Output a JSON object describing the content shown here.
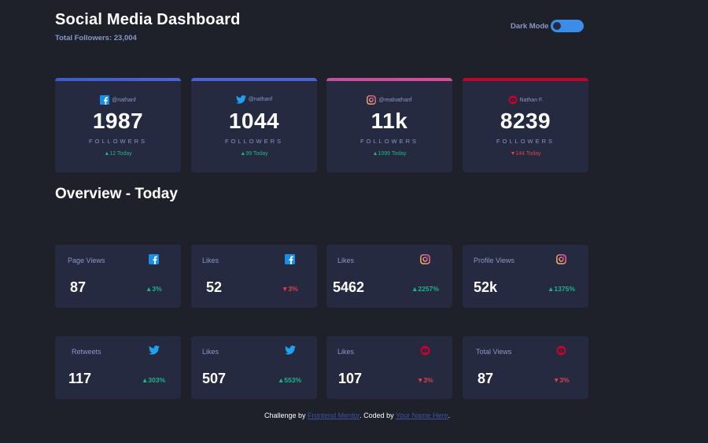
{
  "header": {
    "title": "Social Media Dashboard",
    "subtitle": "Total Followers: 23,004",
    "dark_mode_label": "Dark Mode"
  },
  "colors": {
    "facebook": "#178fe6",
    "twitter": "#1da1f2",
    "instagram_start": "#fdc468",
    "instagram_end": "#df4996",
    "youtube": "#c4032a",
    "up": "#1db489",
    "down": "#dc414c"
  },
  "followers": [
    {
      "platform": "facebook",
      "icon": "facebook-icon",
      "handle": "@nathanf",
      "count": "1987",
      "label": "FOLLOWERS",
      "today": "12 Today",
      "trend": "up"
    },
    {
      "platform": "twitter",
      "icon": "twitter-icon",
      "handle": "@nathanf",
      "count": "1044",
      "label": "FOLLOWERS",
      "today": "99 Today",
      "trend": "up"
    },
    {
      "platform": "instagram",
      "icon": "instagram-icon",
      "handle": "@realnathanf",
      "count": "11k",
      "label": "FOLLOWERS",
      "today": "1099 Today",
      "trend": "up"
    },
    {
      "platform": "youtube",
      "icon": "youtube-icon",
      "handle": "Nathan F.",
      "count": "8239",
      "label": "FOLLOWERS",
      "today": "144 Today",
      "trend": "down"
    }
  ],
  "overview_title": "Overview - Today",
  "overview": [
    {
      "label": "Page Views",
      "icon": "facebook-icon",
      "value": "87",
      "pct": "3%",
      "trend": "up"
    },
    {
      "label": "Likes",
      "icon": "facebook-icon",
      "value": "52",
      "pct": "3%",
      "trend": "down"
    },
    {
      "label": "Likes",
      "icon": "instagram-icon",
      "value": "5462",
      "pct": "2257%",
      "trend": "up"
    },
    {
      "label": "Profile Views",
      "icon": "instagram-icon",
      "value": "52k",
      "pct": "1375%",
      "trend": "up"
    },
    {
      "label": "Retweets",
      "icon": "twitter-icon",
      "value": "117",
      "pct": "303%",
      "trend": "up"
    },
    {
      "label": "Likes",
      "icon": "twitter-icon",
      "value": "507",
      "pct": "553%",
      "trend": "up"
    },
    {
      "label": "Likes",
      "icon": "youtube-icon",
      "value": "107",
      "pct": "3%",
      "trend": "down"
    },
    {
      "label": "Total Views",
      "icon": "youtube-icon",
      "value": "87",
      "pct": "3%",
      "trend": "down"
    }
  ],
  "footer": {
    "prefix": "Challenge by ",
    "link1": "Frontend Mentor",
    "middle": ". Coded by ",
    "link2": "Your Name Here",
    "suffix": "."
  }
}
